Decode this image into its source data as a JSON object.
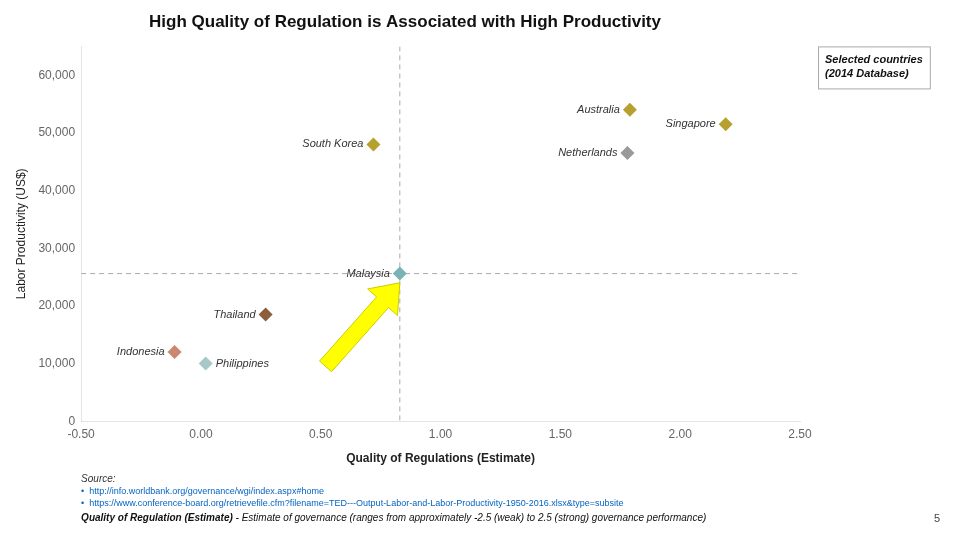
{
  "chart_data": {
    "type": "scatter",
    "title": "High Quality of Regulation is Associated with High Productivity",
    "xlabel": "Quality of Regulations (Estimate)",
    "ylabel": "Labor Productivity (US$)",
    "xlim": [
      -0.5,
      2.5
    ],
    "ylim": [
      0,
      65000
    ],
    "xticks": [
      {
        "value": -0.5,
        "label": "-0.50"
      },
      {
        "value": 0,
        "label": "0.00"
      },
      {
        "value": 0.5,
        "label": "0.50"
      },
      {
        "value": 1,
        "label": "1.00"
      },
      {
        "value": 1.5,
        "label": "1.50"
      },
      {
        "value": 2,
        "label": "2.00"
      },
      {
        "value": 2.5,
        "label": "2.50"
      }
    ],
    "yticks": [
      0,
      {
        "value": 10000,
        "label": "10,000"
      },
      {
        "value": 20000,
        "label": "20,000"
      },
      {
        "value": 30000,
        "label": "30,000"
      },
      {
        "value": 40000,
        "label": "40,000"
      },
      {
        "value": 50000,
        "label": "50,000"
      },
      {
        "value": 60000,
        "label": "60,000"
      }
    ],
    "grid": false,
    "marker": "diamond",
    "series": [
      {
        "name": "Australia",
        "color": "#b5a030",
        "x": [
          1.79
        ],
        "values": [
          54000
        ]
      },
      {
        "name": "Singapore",
        "color": "#b5a030",
        "x": [
          2.19
        ],
        "values": [
          51500
        ]
      },
      {
        "name": "South Korea",
        "color": "#b5a030",
        "x": [
          0.72
        ],
        "values": [
          48000
        ]
      },
      {
        "name": "Netherlands",
        "color": "#999999",
        "x": [
          1.78
        ],
        "values": [
          46500
        ]
      },
      {
        "name": "Malaysia",
        "color": "#7ab3b3",
        "x": [
          0.83
        ],
        "values": [
          25600
        ]
      },
      {
        "name": "Thailand",
        "color": "#8b5e3c",
        "x": [
          0.27
        ],
        "values": [
          18500
        ]
      },
      {
        "name": "Indonesia",
        "color": "#c9896c",
        "x": [
          -0.11
        ],
        "values": [
          12000
        ]
      },
      {
        "name": "Philippines",
        "color": "#a8c8c8",
        "x": [
          0.02
        ],
        "values": [
          10000
        ]
      }
    ],
    "reference_lines": [
      {
        "axis": "y",
        "value": 25600
      },
      {
        "axis": "x",
        "value": 0.83
      }
    ],
    "arrow": {
      "from": [
        0.52,
        9500
      ],
      "to": [
        0.83,
        24000
      ],
      "color": "yellow"
    },
    "box_text": [
      "Selected countries",
      "(2014 Database)"
    ],
    "source": "Source:",
    "notes": [
      "•  http://info.worldbank.org/governance/wgi/index.aspx#home",
      "•  https://www.conference-board.org/retrievefile.cfm?filename=TED---Output-Labor-and-Labor-Productivity-1950-2016.xlsx&type=subsite"
    ],
    "footnote_bold": "Quality of Regulation (Estimate)",
    "footnote_rest": " - Estimate of governance (ranges from approximately -2.5 (weak) to 2.5 (strong) governance performance)",
    "page_number": "5"
  }
}
